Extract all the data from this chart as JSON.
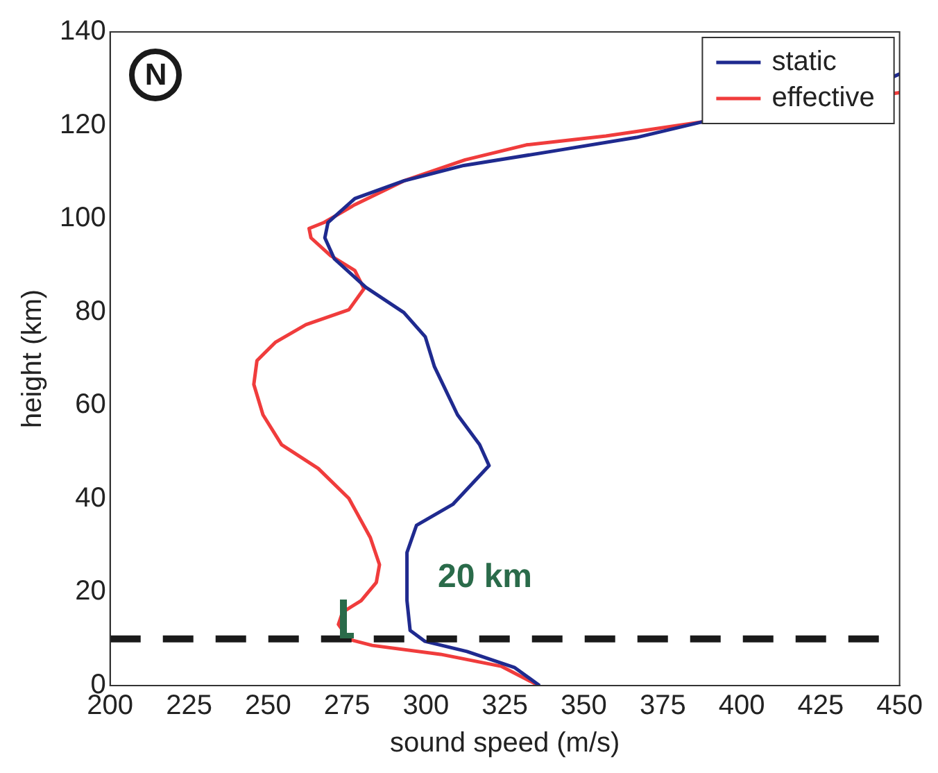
{
  "chart_data": {
    "type": "line",
    "xlabel": "sound speed (m/s)",
    "ylabel": "height (km)",
    "xlim": [
      200,
      450
    ],
    "xticks": [
      200,
      225,
      250,
      275,
      300,
      325,
      350,
      375,
      400,
      425,
      450
    ],
    "ylim": [
      0,
      140
    ],
    "yticks": [
      0,
      20,
      40,
      60,
      80,
      100,
      120,
      140
    ],
    "grid": false,
    "legend": "top right",
    "marker": "none",
    "line_style": "solid",
    "series": [
      {
        "name": "static",
        "color": "#1f2a8f",
        "x": [
          336,
          328,
          313,
          299.6,
          295,
          294,
          294,
          297,
          308.5,
          320,
          317,
          310,
          302.7,
          299.8,
          293,
          281,
          271,
          268,
          269,
          277.5,
          293,
          312,
          341.5,
          366.7,
          448,
          450
        ],
        "values": [
          0,
          3.9,
          7.3,
          9.5,
          11.8,
          18.2,
          28.5,
          34.3,
          38.8,
          47.1,
          51.6,
          58,
          68.3,
          74.7,
          79.9,
          85.3,
          91.4,
          95.9,
          99.2,
          104.3,
          108.1,
          111.4,
          114.6,
          117.4,
          130.4,
          131
        ]
      },
      {
        "name": "effective",
        "color": "#f03c3c",
        "x": [
          335.7,
          324,
          304.6,
          283,
          275.6,
          272.3,
          273.6,
          279.5,
          284.3,
          285.3,
          282.4,
          275.6,
          265.9,
          254.3,
          248.4,
          245.5,
          246.5,
          252.3,
          262,
          275.6,
          280.4,
          277.5,
          269.8,
          263.6,
          263,
          267.8,
          277.5,
          293,
          312.4,
          331.8,
          357,
          448,
          450
        ],
        "values": [
          0,
          4.1,
          6.7,
          8.6,
          9.9,
          13.1,
          15.7,
          18.2,
          22.1,
          25.9,
          31.7,
          40.1,
          46.5,
          51.6,
          58,
          64.5,
          69.6,
          73.5,
          77.3,
          80.5,
          85,
          88.9,
          92.1,
          95.9,
          97.9,
          99.2,
          103,
          108.1,
          112.6,
          115.8,
          117.7,
          126.8,
          127
        ]
      }
    ],
    "ref_lines": [
      {
        "axis": "y",
        "value": 10,
        "color": "#1a1a1a",
        "line_style": "dashed"
      }
    ],
    "annotations": [
      "20 km",
      "N"
    ]
  }
}
